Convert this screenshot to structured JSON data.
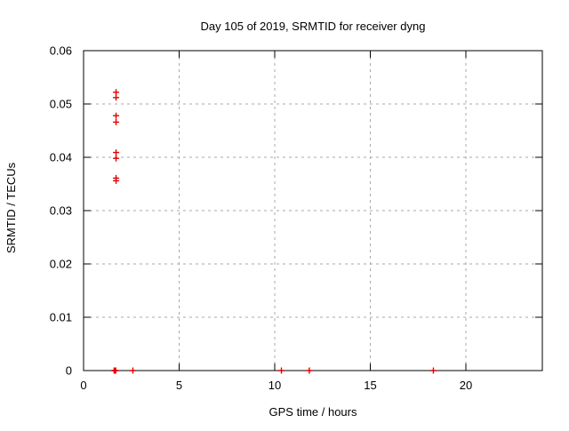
{
  "window": {
    "background_color": "#ffffff",
    "text_color": "#000000"
  },
  "chart_data": {
    "type": "scatter",
    "title": "Day 105 of 2019, SRMTID for receiver dyng",
    "xlabel": "GPS time / hours",
    "ylabel": "SRMTID / TECUs",
    "xlim": [
      0,
      24
    ],
    "ylim": [
      0,
      0.06
    ],
    "xticks": {
      "values": [
        0,
        5,
        10,
        15,
        20
      ],
      "labels": [
        "0",
        "5",
        "10",
        "15",
        "20"
      ]
    },
    "yticks": {
      "values": [
        0,
        0.01,
        0.02,
        0.03,
        0.04,
        0.05,
        0.06
      ],
      "labels": [
        "0",
        "0.01",
        "0.02",
        "0.03",
        "0.04",
        "0.05",
        "0.06"
      ]
    },
    "grid": true,
    "grid_style": "dashed",
    "grid_color": "#a8a8a8",
    "legend_position": "none",
    "marker": "plus",
    "marker_color": "#e10000",
    "series": [
      {
        "name": "SRMTID",
        "points": [
          [
            1.7,
            0.0522
          ],
          [
            1.7,
            0.0512
          ],
          [
            1.7,
            0.0478
          ],
          [
            1.7,
            0.0466
          ],
          [
            1.7,
            0.0409
          ],
          [
            1.7,
            0.0398
          ],
          [
            1.7,
            0.0361
          ],
          [
            1.7,
            0.0356
          ],
          [
            1.6,
            0
          ],
          [
            1.64,
            0
          ],
          [
            1.68,
            0
          ],
          [
            2.58,
            0
          ],
          [
            10.35,
            0
          ],
          [
            11.81,
            0
          ],
          [
            18.3,
            0
          ]
        ]
      }
    ]
  }
}
